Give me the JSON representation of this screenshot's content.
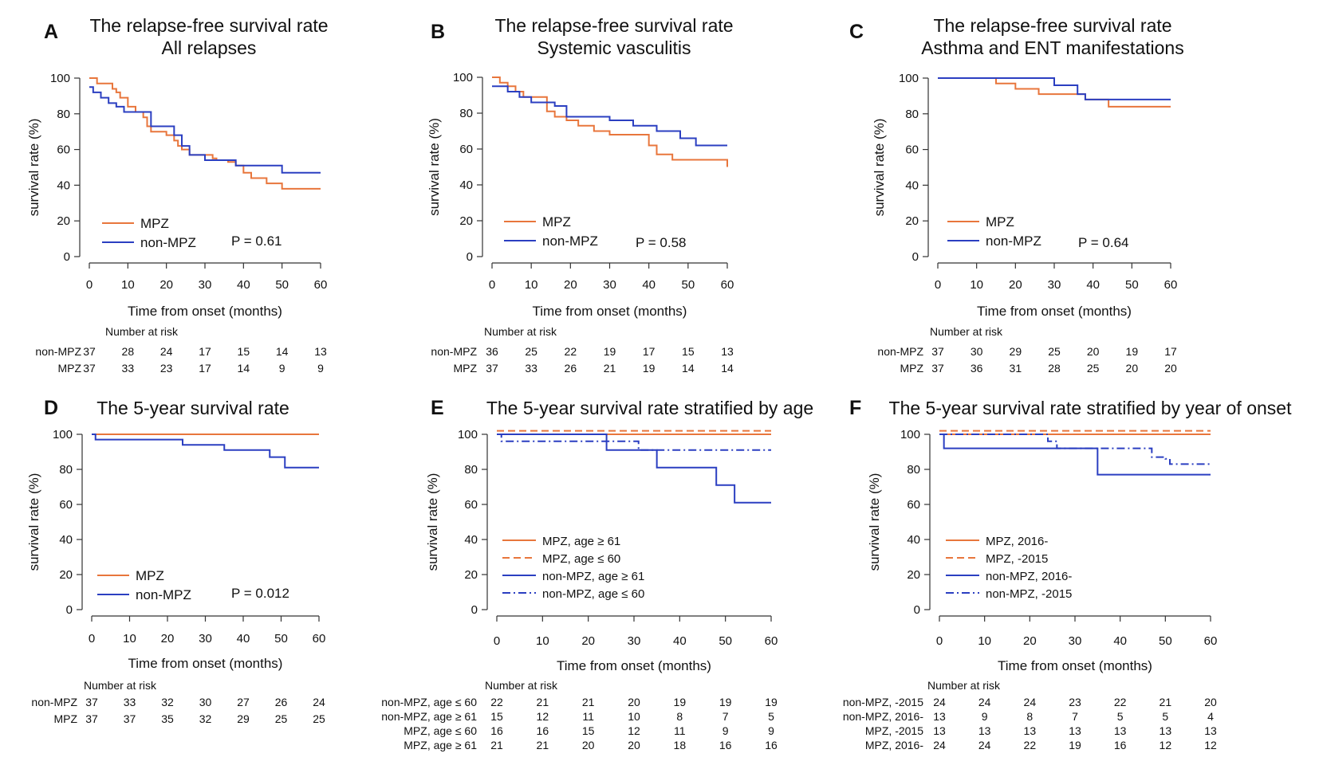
{
  "colors": {
    "mpz": "#E8763C",
    "nonmpz": "#2B3FC1",
    "axis": "#333333"
  },
  "common": {
    "xlabel": "Time from onset (months)",
    "ylabel": "survival rate (%)",
    "risk_title": "Number at risk"
  },
  "chart_data": [
    {
      "id": "A",
      "type": "line",
      "step": true,
      "title": [
        "The relapse-free survival rate",
        "All relapses"
      ],
      "xlim": [
        0,
        60
      ],
      "ylim": [
        0,
        100
      ],
      "xticks": [
        0,
        10,
        20,
        30,
        40,
        50,
        60
      ],
      "yticks": [
        0,
        20,
        40,
        60,
        80,
        100
      ],
      "pvalue": "P = 0.61",
      "series": [
        {
          "name": "MPZ",
          "color": "mpz",
          "dash": "solid",
          "x": [
            0,
            2,
            4,
            6,
            7,
            8,
            10,
            12,
            14,
            15,
            16,
            20,
            22,
            23,
            24,
            26,
            32,
            33,
            36,
            38,
            40,
            42,
            46,
            50,
            60
          ],
          "y": [
            100,
            97,
            97,
            94,
            92,
            89,
            84,
            81,
            78,
            73,
            70,
            68,
            65,
            62,
            60,
            57,
            55,
            54,
            53,
            51,
            47,
            44,
            41,
            38,
            38
          ]
        },
        {
          "name": "non-MPZ",
          "color": "nonmpz",
          "dash": "solid",
          "x": [
            0,
            1,
            3,
            5,
            7,
            9,
            16,
            22,
            24,
            26,
            30,
            38,
            40,
            46,
            50,
            60
          ],
          "y": [
            95,
            92,
            89,
            86,
            84,
            81,
            73,
            68,
            62,
            57,
            54,
            51,
            51,
            51,
            47,
            47
          ]
        }
      ],
      "legend": [
        {
          "label": "MPZ",
          "color": "mpz",
          "dash": "solid"
        },
        {
          "label": "non-MPZ",
          "color": "nonmpz",
          "dash": "solid"
        }
      ],
      "risk": {
        "times": [
          0,
          10,
          20,
          30,
          40,
          50,
          60
        ],
        "rows": [
          {
            "label": "non-MPZ",
            "values": [
              37,
              28,
              24,
              17,
              15,
              14,
              13
            ]
          },
          {
            "label": "MPZ",
            "values": [
              37,
              33,
              23,
              17,
              14,
              9,
              9
            ]
          }
        ]
      }
    },
    {
      "id": "B",
      "type": "line",
      "step": true,
      "title": [
        "The relapse-free survival rate",
        "Systemic vasculitis"
      ],
      "xlim": [
        0,
        60
      ],
      "ylim": [
        0,
        100
      ],
      "xticks": [
        0,
        10,
        20,
        30,
        40,
        50,
        60
      ],
      "yticks": [
        0,
        20,
        40,
        60,
        80,
        100
      ],
      "pvalue": "P = 0.58",
      "series": [
        {
          "name": "MPZ",
          "color": "mpz",
          "dash": "solid",
          "x": [
            0,
            2,
            4,
            6,
            8,
            10,
            14,
            16,
            19,
            22,
            26,
            30,
            40,
            42,
            46,
            60
          ],
          "y": [
            100,
            97,
            95,
            92,
            89,
            89,
            81,
            78,
            76,
            73,
            70,
            68,
            62,
            57,
            54,
            50
          ]
        },
        {
          "name": "non-MPZ",
          "color": "nonmpz",
          "dash": "solid",
          "x": [
            0,
            4,
            7,
            10,
            16,
            19,
            30,
            36,
            42,
            48,
            52,
            60
          ],
          "y": [
            95,
            92,
            89,
            86,
            84,
            78,
            76,
            73,
            70,
            66,
            62,
            62
          ]
        }
      ],
      "legend": [
        {
          "label": "MPZ",
          "color": "mpz",
          "dash": "solid"
        },
        {
          "label": "non-MPZ",
          "color": "nonmpz",
          "dash": "solid"
        }
      ],
      "risk": {
        "times": [
          0,
          10,
          20,
          30,
          40,
          50,
          60
        ],
        "rows": [
          {
            "label": "non-MPZ",
            "values": [
              36,
              25,
              22,
              19,
              17,
              15,
              13
            ]
          },
          {
            "label": "MPZ",
            "values": [
              37,
              33,
              26,
              21,
              19,
              14,
              14
            ]
          }
        ]
      }
    },
    {
      "id": "C",
      "type": "line",
      "step": true,
      "title": [
        "The relapse-free survival rate",
        "Asthma and ENT manifestations"
      ],
      "xlim": [
        0,
        60
      ],
      "ylim": [
        0,
        100
      ],
      "xticks": [
        0,
        10,
        20,
        30,
        40,
        50,
        60
      ],
      "yticks": [
        0,
        20,
        40,
        60,
        80,
        100
      ],
      "pvalue": "P = 0.64",
      "series": [
        {
          "name": "MPZ",
          "color": "mpz",
          "dash": "solid",
          "x": [
            0,
            15,
            20,
            26,
            36,
            38,
            44,
            60
          ],
          "y": [
            100,
            97,
            94,
            91,
            91,
            88,
            84,
            84
          ]
        },
        {
          "name": "non-MPZ",
          "color": "nonmpz",
          "dash": "solid",
          "x": [
            0,
            30,
            36,
            38,
            44,
            60
          ],
          "y": [
            100,
            96,
            91,
            88,
            88,
            88
          ]
        }
      ],
      "legend": [
        {
          "label": "MPZ",
          "color": "mpz",
          "dash": "solid"
        },
        {
          "label": "non-MPZ",
          "color": "nonmpz",
          "dash": "solid"
        }
      ],
      "risk": {
        "times": [
          0,
          10,
          20,
          30,
          40,
          50,
          60
        ],
        "rows": [
          {
            "label": "non-MPZ",
            "values": [
              37,
              30,
              29,
              25,
              20,
              19,
              17
            ]
          },
          {
            "label": "MPZ",
            "values": [
              37,
              36,
              31,
              28,
              25,
              20,
              20
            ]
          }
        ]
      }
    },
    {
      "id": "D",
      "type": "line",
      "step": true,
      "title": [
        "The 5-year survival rate"
      ],
      "xlim": [
        0,
        60
      ],
      "ylim": [
        0,
        100
      ],
      "xticks": [
        0,
        10,
        20,
        30,
        40,
        50,
        60
      ],
      "yticks": [
        0,
        20,
        40,
        60,
        80,
        100
      ],
      "pvalue": "P = 0.012",
      "series": [
        {
          "name": "MPZ",
          "color": "mpz",
          "dash": "solid",
          "x": [
            0,
            60
          ],
          "y": [
            100,
            100
          ]
        },
        {
          "name": "non-MPZ",
          "color": "nonmpz",
          "dash": "solid",
          "x": [
            0,
            1,
            24,
            35,
            47,
            51,
            60
          ],
          "y": [
            100,
            97,
            94,
            91,
            87,
            81,
            81
          ]
        }
      ],
      "legend": [
        {
          "label": "MPZ",
          "color": "mpz",
          "dash": "solid"
        },
        {
          "label": "non-MPZ",
          "color": "nonmpz",
          "dash": "solid"
        }
      ],
      "risk": {
        "times": [
          0,
          10,
          20,
          30,
          40,
          50,
          60
        ],
        "rows": [
          {
            "label": "non-MPZ",
            "values": [
              37,
              33,
              32,
              30,
              27,
              26,
              24
            ]
          },
          {
            "label": "MPZ",
            "values": [
              37,
              37,
              35,
              32,
              29,
              25,
              25
            ]
          }
        ]
      }
    },
    {
      "id": "E",
      "type": "line",
      "step": true,
      "title": [
        "The 5-year survival rate stratified by age"
      ],
      "xlim": [
        0,
        60
      ],
      "ylim": [
        0,
        100
      ],
      "xticks": [
        0,
        10,
        20,
        30,
        40,
        50,
        60
      ],
      "yticks": [
        0,
        20,
        40,
        60,
        80,
        100
      ],
      "pvalue": "",
      "series": [
        {
          "name": "MPZ, age ≥ 61",
          "color": "mpz",
          "dash": "solid",
          "x": [
            0,
            60
          ],
          "y": [
            100,
            100
          ]
        },
        {
          "name": "MPZ, age ≤ 60",
          "color": "mpz",
          "dash": "dashed",
          "x": [
            0,
            60
          ],
          "y": [
            102,
            102
          ]
        },
        {
          "name": "non-MPZ, age ≥ 61",
          "color": "nonmpz",
          "dash": "solid",
          "x": [
            0,
            24,
            35,
            48,
            52,
            60
          ],
          "y": [
            100,
            91,
            81,
            71,
            61,
            61
          ]
        },
        {
          "name": "non-MPZ, age ≤ 60",
          "color": "nonmpz",
          "dash": "dashdot",
          "x": [
            0,
            1,
            31,
            60
          ],
          "y": [
            100,
            96,
            91,
            91
          ]
        }
      ],
      "legend": [
        {
          "label": "MPZ, age ≥ 61",
          "color": "mpz",
          "dash": "solid"
        },
        {
          "label": "MPZ, age ≤ 60",
          "color": "mpz",
          "dash": "dashed"
        },
        {
          "label": "non-MPZ, age ≥ 61",
          "color": "nonmpz",
          "dash": "solid"
        },
        {
          "label": "non-MPZ, age ≤ 60",
          "color": "nonmpz",
          "dash": "dashdot"
        }
      ],
      "risk": {
        "times": [
          0,
          10,
          20,
          30,
          40,
          50,
          60
        ],
        "rows": [
          {
            "label": "non-MPZ, age ≤ 60",
            "values": [
              22,
              21,
              21,
              20,
              19,
              19,
              19
            ]
          },
          {
            "label": "non-MPZ, age ≥ 61",
            "values": [
              15,
              12,
              11,
              10,
              8,
              7,
              5
            ]
          },
          {
            "label": "MPZ, age ≤ 60",
            "values": [
              16,
              16,
              15,
              12,
              11,
              9,
              9
            ]
          },
          {
            "label": "MPZ, age ≥ 61",
            "values": [
              21,
              21,
              20,
              20,
              18,
              16,
              16
            ]
          }
        ]
      }
    },
    {
      "id": "F",
      "type": "line",
      "step": true,
      "title": [
        "The 5-year survival rate stratified by year of onset"
      ],
      "xlim": [
        0,
        60
      ],
      "ylim": [
        0,
        100
      ],
      "xticks": [
        0,
        10,
        20,
        30,
        40,
        50,
        60
      ],
      "yticks": [
        0,
        20,
        40,
        60,
        80,
        100
      ],
      "pvalue": "",
      "series": [
        {
          "name": "MPZ, 2016-",
          "color": "mpz",
          "dash": "solid",
          "x": [
            0,
            60
          ],
          "y": [
            100,
            100
          ]
        },
        {
          "name": "MPZ, -2015",
          "color": "mpz",
          "dash": "dashed",
          "x": [
            0,
            60
          ],
          "y": [
            102,
            102
          ]
        },
        {
          "name": "non-MPZ, 2016-",
          "color": "nonmpz",
          "dash": "solid",
          "x": [
            0,
            1,
            35,
            60
          ],
          "y": [
            100,
            92,
            77,
            77
          ]
        },
        {
          "name": "non-MPZ, -2015",
          "color": "nonmpz",
          "dash": "dashdot",
          "x": [
            0,
            24,
            26,
            47,
            50,
            51,
            60
          ],
          "y": [
            100,
            96,
            92,
            87,
            86,
            83,
            83
          ]
        }
      ],
      "legend": [
        {
          "label": "MPZ, 2016-",
          "color": "mpz",
          "dash": "solid"
        },
        {
          "label": "MPZ, -2015",
          "color": "mpz",
          "dash": "dashed"
        },
        {
          "label": "non-MPZ, 2016-",
          "color": "nonmpz",
          "dash": "solid"
        },
        {
          "label": "non-MPZ, -2015",
          "color": "nonmpz",
          "dash": "dashdot"
        }
      ],
      "risk": {
        "times": [
          0,
          10,
          20,
          30,
          40,
          50,
          60
        ],
        "rows": [
          {
            "label": "non-MPZ, -2015",
            "values": [
              24,
              24,
              24,
              23,
              22,
              21,
              20
            ]
          },
          {
            "label": "non-MPZ, 2016-",
            "values": [
              13,
              9,
              8,
              7,
              5,
              5,
              4
            ]
          },
          {
            "label": "MPZ, -2015",
            "values": [
              13,
              13,
              13,
              13,
              13,
              13,
              13
            ]
          },
          {
            "label": "MPZ, 2016-",
            "values": [
              24,
              24,
              22,
              19,
              16,
              12,
              12
            ]
          }
        ]
      }
    }
  ]
}
